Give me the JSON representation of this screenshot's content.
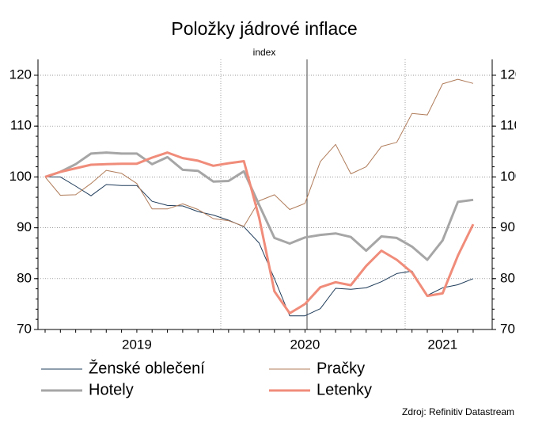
{
  "chart_data": {
    "type": "line",
    "title": "Položky jádrové inflace",
    "subtitle": "index",
    "source": "Zdroj: Refinitiv Datastream",
    "categories": [
      null,
      null,
      null,
      null,
      null,
      null,
      "2019",
      null,
      null,
      null,
      null,
      null,
      null,
      null,
      null,
      null,
      null,
      "2020",
      null,
      null,
      null,
      null,
      null,
      null,
      null,
      null,
      "2021",
      null,
      null
    ],
    "series": [
      {
        "name": "Ženské oblečení",
        "color": "#1f3c5a",
        "width": 1,
        "values": [
          100,
          100,
          98.2,
          96.3,
          98.5,
          98.3,
          98.3,
          95.2,
          94.4,
          94.3,
          93.2,
          92.5,
          91.5,
          90.2,
          87,
          80,
          72.7,
          72.7,
          74.1,
          78.1,
          77.9,
          78.2,
          79.4,
          81,
          81.5,
          76.7,
          78.2,
          78.8,
          80
        ]
      },
      {
        "name": "Pračky",
        "color": "#b07c5a",
        "width": 1,
        "values": [
          100,
          96.4,
          96.5,
          98.7,
          101.3,
          100.7,
          98.7,
          93.7,
          93.7,
          94.7,
          93.6,
          91.8,
          91.4,
          90.3,
          95.3,
          96.5,
          93.6,
          94.8,
          103,
          106.4,
          100.6,
          102,
          106,
          106.8,
          112.5,
          112.2,
          118.3,
          119.2,
          118.4
        ]
      },
      {
        "name": "Hotely",
        "color": "#a6a6a6",
        "width": 3,
        "values": [
          100,
          101,
          102.5,
          104.6,
          104.8,
          104.6,
          104.6,
          102.5,
          103.9,
          101.4,
          101.2,
          99.1,
          99.2,
          101.1,
          94.5,
          88,
          86.9,
          88.1,
          88.6,
          88.9,
          88.2,
          85.5,
          88.3,
          88,
          86.3,
          83.7,
          87.5,
          95.1,
          95.5
        ]
      },
      {
        "name": "Letenky",
        "color": "#f08c7a",
        "width": 3,
        "values": [
          100,
          101,
          101.7,
          102.4,
          102.5,
          102.6,
          102.6,
          103.8,
          104.8,
          103.7,
          103.2,
          102.2,
          102.7,
          103.1,
          92,
          77.5,
          73.2,
          75,
          78.3,
          79.3,
          78.7,
          82.5,
          85.5,
          83.7,
          81.2,
          76.6,
          77.1,
          84.5,
          90.7
        ]
      }
    ],
    "ylim": [
      70,
      120
    ],
    "yticks": [
      70,
      80,
      90,
      100,
      110,
      120
    ],
    "y2lim": [
      70,
      120
    ],
    "y2ticks": [
      70,
      80,
      90,
      100,
      110,
      120
    ],
    "grid": true
  }
}
